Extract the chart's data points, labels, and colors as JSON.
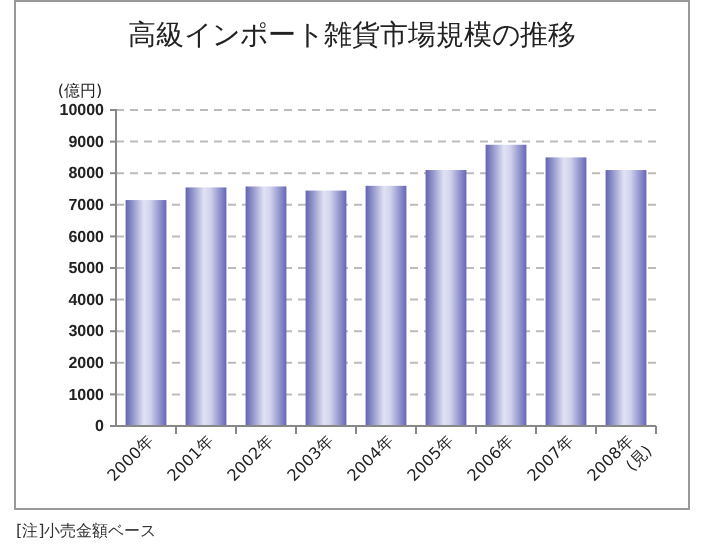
{
  "chart_data": {
    "type": "bar",
    "title": "高級インポート雑貨市場規模の推移",
    "ylabel": "(億円)",
    "categories": [
      "2000年",
      "2001年",
      "2002年",
      "2003年",
      "2004年",
      "2005年",
      "2006年",
      "2007年",
      "2008年\n(見)"
    ],
    "values": [
      7150,
      7550,
      7580,
      7450,
      7600,
      8100,
      8900,
      8500,
      8100
    ],
    "color": "#6b6fc4",
    "ylim": [
      0,
      10000
    ],
    "yticks": [
      0,
      1000,
      2000,
      3000,
      4000,
      5000,
      6000,
      7000,
      8000,
      9000,
      10000
    ],
    "grid": "y",
    "annotations": [
      "[注]小売金額ベース"
    ]
  }
}
